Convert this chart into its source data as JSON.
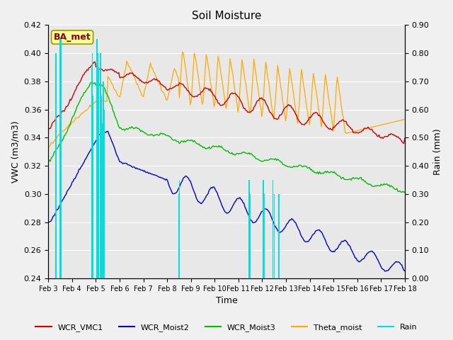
{
  "title": "Soil Moisture",
  "ylabel_left": "VWC (m3/m3)",
  "ylabel_right": "Rain (mm)",
  "xlabel": "Time",
  "ylim_left": [
    0.24,
    0.42
  ],
  "ylim_right": [
    0.0,
    0.9
  ],
  "annotation": "BA_met",
  "x_tick_labels": [
    "Feb 3",
    "Feb 4",
    "Feb 5",
    "Feb 6",
    "Feb 7",
    "Feb 8",
    "Feb 9",
    "Feb 10",
    "Feb 11",
    "Feb 12",
    "Feb 13",
    "Feb 14",
    "Feb 15",
    "Feb 16",
    "Feb 17",
    "Feb 18"
  ],
  "background_color": "#f0f0f0",
  "plot_bg_color": "#e8e8e8",
  "colors": {
    "WCR_VMC1": "#cc0000",
    "WCR_Moist2": "#0000cc",
    "WCR_Moist3": "#00bb00",
    "Theta_moist": "#ffaa00",
    "Rain": "#00dddd"
  },
  "legend_labels": [
    "WCR_VMC1",
    "WCR_Moist2",
    "WCR_Moist3",
    "Theta_moist",
    "Rain"
  ],
  "yticks_left": [
    0.24,
    0.26,
    0.28,
    0.3,
    0.32,
    0.34,
    0.36,
    0.38,
    0.4,
    0.42
  ],
  "yticks_right": [
    0.0,
    0.1,
    0.2,
    0.3,
    0.4,
    0.5,
    0.6,
    0.7,
    0.8,
    0.9
  ]
}
